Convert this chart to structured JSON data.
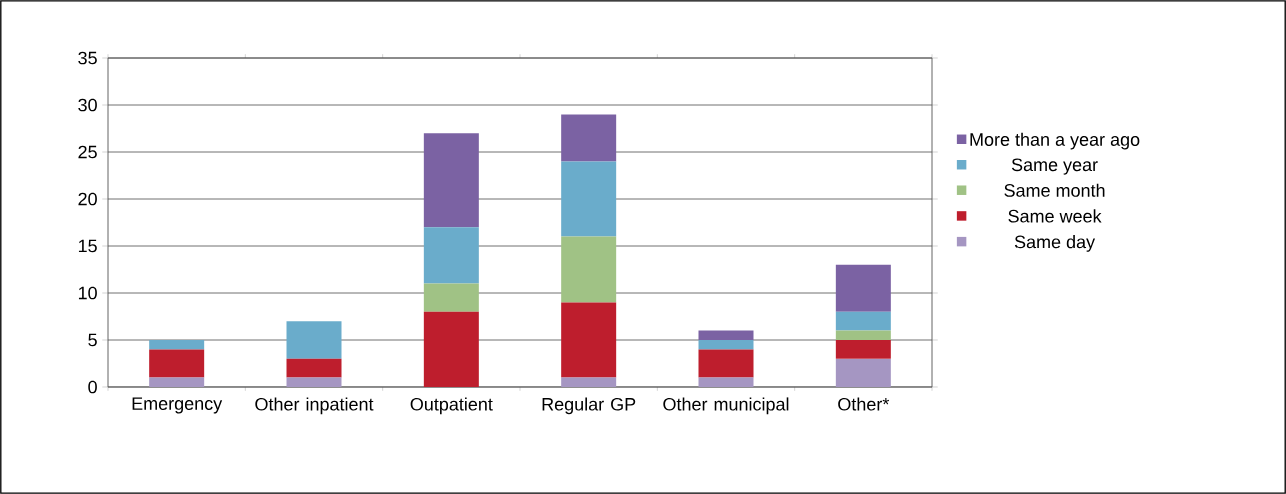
{
  "chart_data": {
    "type": "bar",
    "stacked": true,
    "categories": [
      "Emergency",
      "Other inpatient",
      "Outpatient",
      "Regular GP",
      "Other municipal",
      "Other*"
    ],
    "series": [
      {
        "name": "Same day",
        "color": "#a596c2",
        "values": [
          1,
          1,
          0,
          1,
          1,
          3
        ]
      },
      {
        "name": "Same week",
        "color": "#be1e2d",
        "values": [
          3,
          2,
          8,
          8,
          3,
          2
        ]
      },
      {
        "name": "Same month",
        "color": "#a0c285",
        "values": [
          0,
          0,
          3,
          7,
          0,
          1
        ]
      },
      {
        "name": "Same year",
        "color": "#6aaccb",
        "values": [
          1,
          4,
          6,
          8,
          1,
          2
        ]
      },
      {
        "name": "More than a year ago",
        "color": "#7b62a3",
        "values": [
          0,
          0,
          10,
          5,
          1,
          5
        ]
      }
    ],
    "ylim": [
      0,
      35
    ],
    "yticks": [
      0,
      5,
      10,
      15,
      20,
      25,
      30,
      35
    ],
    "grid": "y",
    "legend": "right"
  }
}
